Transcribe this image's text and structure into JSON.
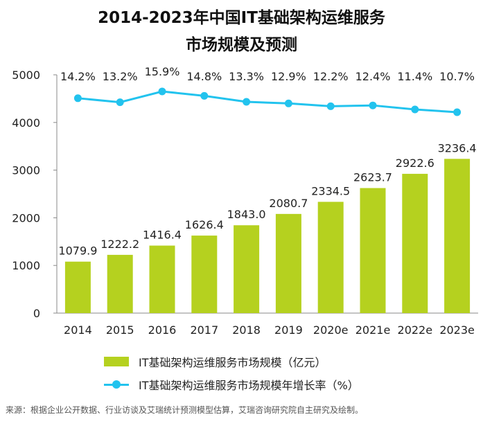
{
  "title_line1": "2014-2023年中国IT基础架构运维服务",
  "title_line2": "市场规模及预测",
  "source": "来源：根据企业公开数据、行业访谈及艾瑞统计预测模型估算，艾瑞咨询研究院自主研究及绘制。",
  "colors": {
    "bar": "#b5d11f",
    "line": "#22c3ee"
  },
  "chart_data": {
    "type": "bar",
    "categories": [
      "2014",
      "2015",
      "2016",
      "2017",
      "2018",
      "2019",
      "2020e",
      "2021e",
      "2022e",
      "2023e"
    ],
    "series": [
      {
        "name": "IT基础架构运维服务市场规模（亿元）",
        "type": "bar",
        "values": [
          1079.9,
          1222.2,
          1416.4,
          1626.4,
          1843.0,
          2080.7,
          2334.5,
          2623.7,
          2922.6,
          3236.4
        ],
        "labels": [
          "1079.9",
          "1222.2",
          "1416.4",
          "1626.4",
          "1843.0",
          "2080.7",
          "2334.5",
          "2623.7",
          "2922.6",
          "3236.4"
        ]
      },
      {
        "name": "IT基础架构运维服务市场规模年增长率（%）",
        "type": "line",
        "values": [
          14.2,
          13.2,
          15.9,
          14.8,
          13.3,
          12.9,
          12.2,
          12.4,
          11.4,
          10.7
        ],
        "labels": [
          "14.2%",
          "13.2%",
          "15.9%",
          "14.8%",
          "13.3%",
          "12.9%",
          "12.2%",
          "12.4%",
          "11.4%",
          "10.7%"
        ]
      }
    ],
    "ylim": [
      0,
      5000
    ],
    "yticks": [
      "0",
      "1000",
      "2000",
      "3000",
      "4000",
      "5000"
    ],
    "legend": [
      "IT基础架构运维服务市场规模（亿元）",
      "IT基础架构运维服务市场规模年增长率（%）"
    ]
  }
}
